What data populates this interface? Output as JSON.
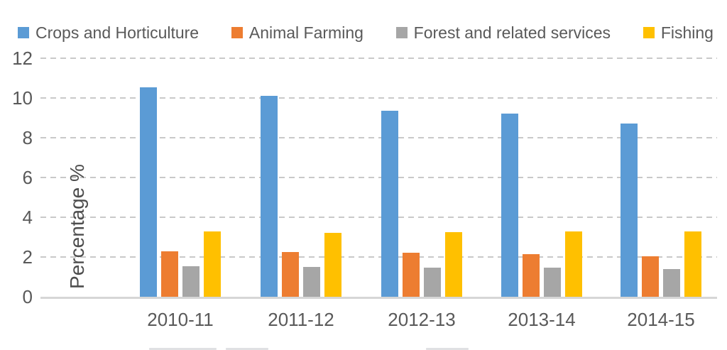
{
  "chart_data": {
    "type": "bar",
    "title": "",
    "categories": [
      "2010-11",
      "2011-12",
      "2012-13",
      "2013-14",
      "2014-15"
    ],
    "series": [
      {
        "name": "Crops and Horticulture",
        "color": "#5B9BD5",
        "values": [
          10.55,
          10.1,
          9.35,
          9.2,
          8.7
        ]
      },
      {
        "name": "Animal Farming",
        "color": "#ED7D31",
        "values": [
          2.3,
          2.25,
          2.2,
          2.15,
          2.05
        ]
      },
      {
        "name": "Forest and related services",
        "color": "#A6A6A6",
        "values": [
          1.55,
          1.5,
          1.45,
          1.45,
          1.4
        ]
      },
      {
        "name": "Fishing",
        "color": "#FFC000",
        "values": [
          3.3,
          3.2,
          3.25,
          3.3,
          3.3
        ]
      }
    ],
    "xlabel": "",
    "ylabel": "Percentage %",
    "yticks": [
      0,
      2,
      4,
      6,
      8,
      10,
      12
    ],
    "ylim": [
      0,
      12
    ],
    "legend_position": "top",
    "grid": "horizontal-dashed",
    "colors": {
      "axis_text": "#595959",
      "gridline": "#C9C9C9",
      "baseline": "#D6D6D6",
      "background": "#FFFFFF"
    }
  }
}
